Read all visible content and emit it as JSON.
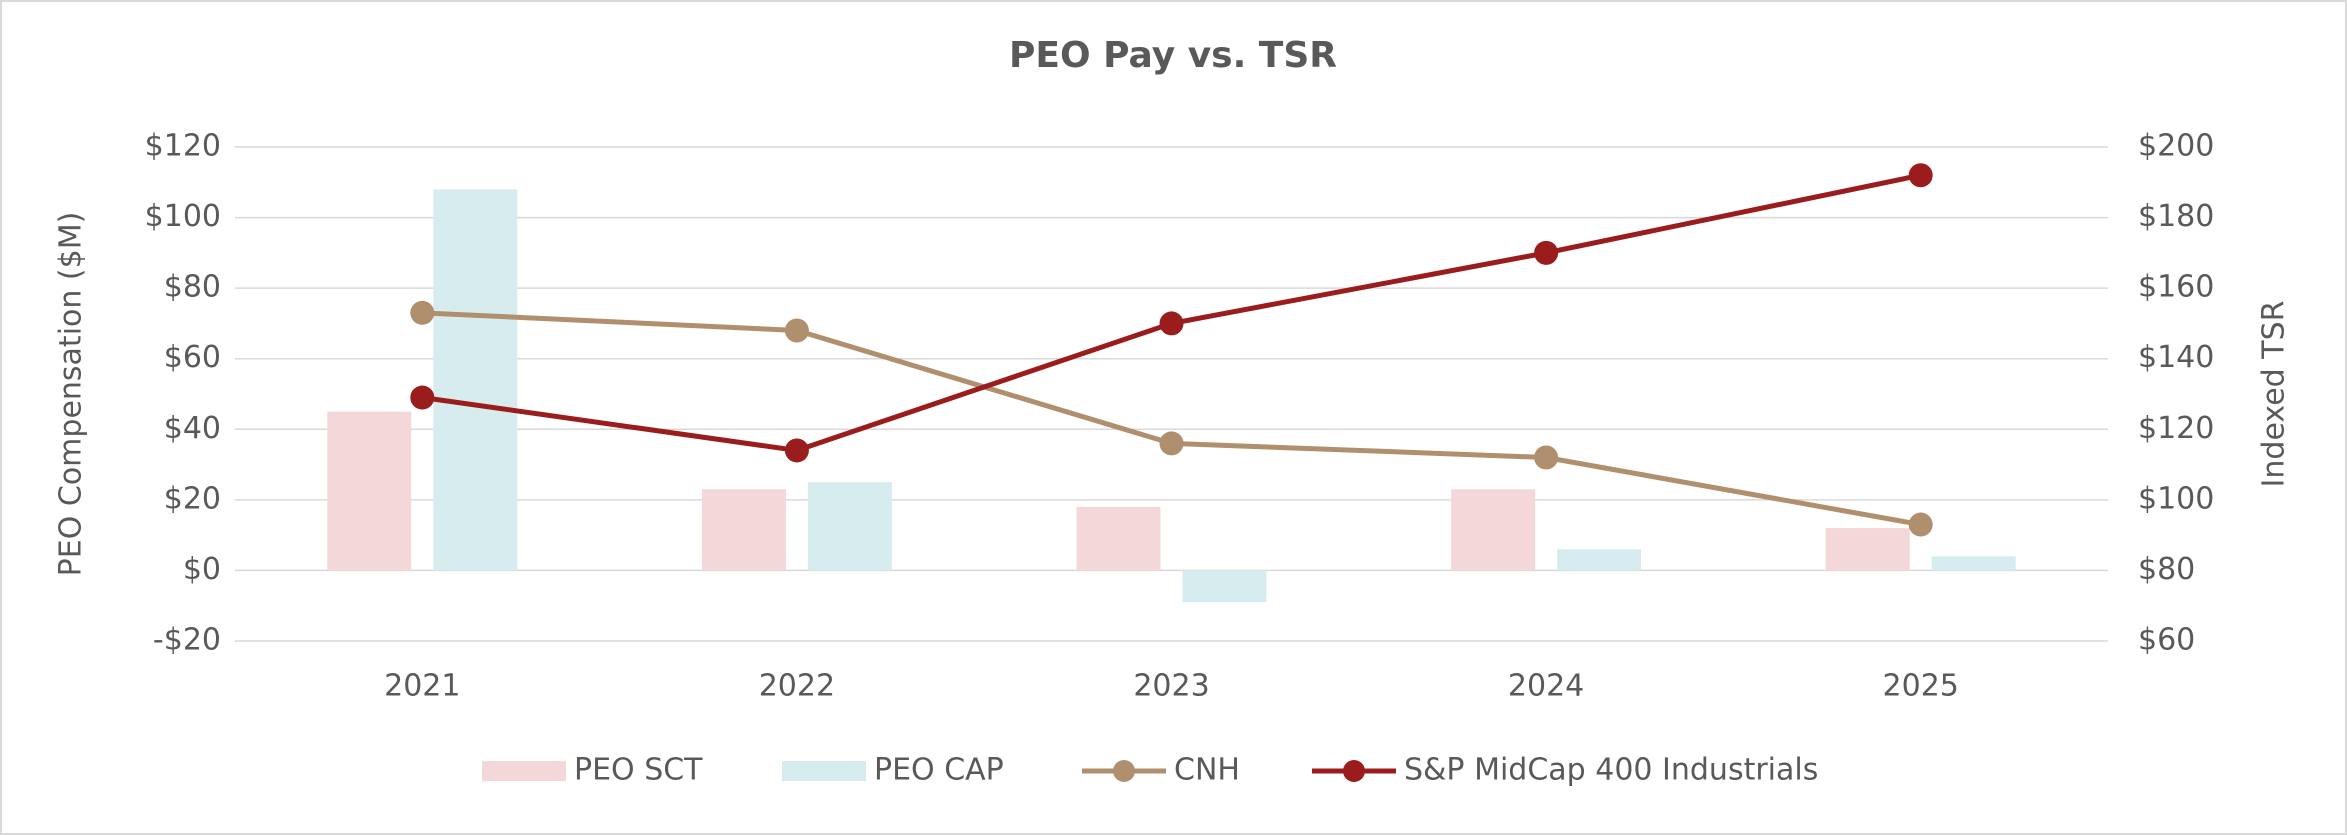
{
  "chart_data": {
    "type": "bar-line",
    "title": "PEO Pay vs. TSR",
    "categories": [
      "2021",
      "2022",
      "2023",
      "2024",
      "2025"
    ],
    "ylabel": "PEO Compensation ($M)",
    "y2label": "Indexed TSR",
    "ylim": [
      -20,
      120
    ],
    "yticks": [
      {
        "value": -20,
        "label": "-$20"
      },
      {
        "value": 0,
        "label": "$0"
      },
      {
        "value": 20,
        "label": "$20"
      },
      {
        "value": 40,
        "label": "$40"
      },
      {
        "value": 60,
        "label": "$60"
      },
      {
        "value": 80,
        "label": "$80"
      },
      {
        "value": 100,
        "label": "$100"
      },
      {
        "value": 120,
        "label": "$120"
      }
    ],
    "y2lim": [
      60,
      200
    ],
    "y2ticks": [
      {
        "value": 60,
        "label": "$60"
      },
      {
        "value": 80,
        "label": "$80"
      },
      {
        "value": 100,
        "label": "$100"
      },
      {
        "value": 120,
        "label": "$120"
      },
      {
        "value": 140,
        "label": "$140"
      },
      {
        "value": 160,
        "label": "$160"
      },
      {
        "value": 180,
        "label": "$180"
      },
      {
        "value": 200,
        "label": "$200"
      }
    ],
    "grid": true,
    "legend": "bottom",
    "series": [
      {
        "name": "PEO SCT",
        "type": "bar",
        "color": "#f4d7d8",
        "values": [
          45,
          23,
          18,
          23,
          12
        ]
      },
      {
        "name": "PEO CAP",
        "type": "bar",
        "color": "#d6ecef",
        "values": [
          108,
          25,
          -9,
          6,
          4
        ]
      },
      {
        "name": "CNH",
        "type": "line",
        "axis": "y2",
        "color": "#b08f6e",
        "values": [
          153,
          148,
          116,
          112,
          93
        ]
      },
      {
        "name": "S&P MidCap 400 Industrials",
        "type": "line",
        "axis": "y2",
        "color": "#9b1c1c",
        "values": [
          129,
          114,
          150,
          170,
          192
        ]
      }
    ]
  }
}
